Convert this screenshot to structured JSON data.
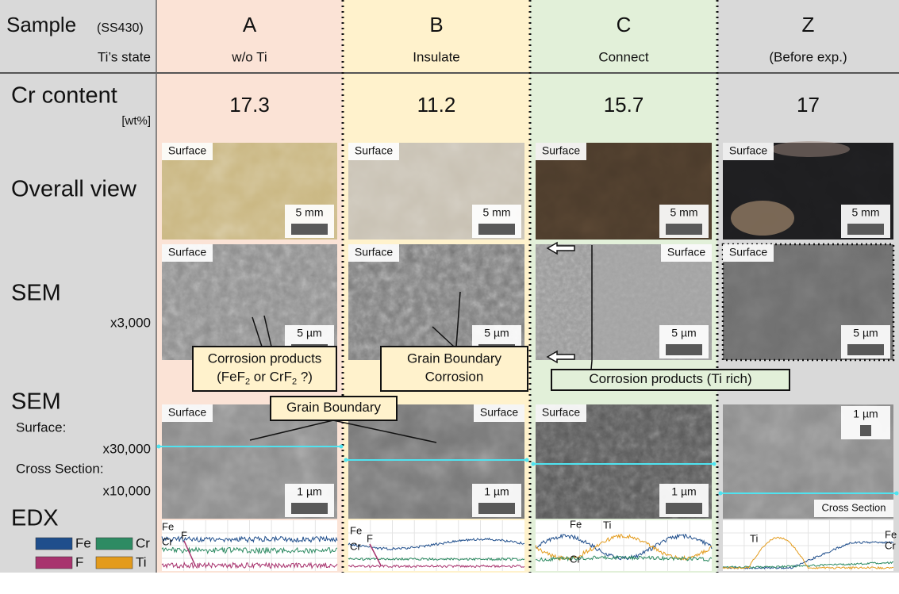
{
  "header": {
    "sample": "Sample",
    "sample_note": "(SS430)",
    "state_label": "Ti’s state"
  },
  "row_labels": {
    "cr_content": "Cr content",
    "cr_unit": "[wt%]",
    "overall": "Overall view",
    "sem1": "SEM",
    "sem1_mag": "x3,000",
    "sem2": "SEM",
    "surface": "Surface:",
    "surface_mag": "x30,000",
    "cross": "Cross Section:",
    "cross_mag": "x10,000",
    "edx": "EDX"
  },
  "legend": [
    {
      "name": "Fe",
      "color": "#1f4e8c"
    },
    {
      "name": "Cr",
      "color": "#2e8b63"
    },
    {
      "name": "F",
      "color": "#a8336e"
    },
    {
      "name": "Ti",
      "color": "#e39b1c"
    }
  ],
  "columns": [
    {
      "sample": "A",
      "state": "w/o Ti",
      "cr_content": 17.3,
      "overall": {
        "tag": "Surface",
        "scale": "5 mm"
      },
      "sem": {
        "tag": "Surface",
        "scale": "5 µm"
      },
      "sem_high": {
        "tag": "Surface",
        "scale": "1 µm"
      },
      "edx_labels": [
        "Fe",
        "Cr",
        "F"
      ]
    },
    {
      "sample": "B",
      "state": "Insulate",
      "cr_content": 11.2,
      "overall": {
        "tag": "Surface",
        "scale": "5 mm"
      },
      "sem": {
        "tag": "Surface",
        "scale": "5 µm"
      },
      "sem_high": {
        "tag": "Surface",
        "scale": "1 µm"
      },
      "edx_labels": [
        "Fe",
        "Cr",
        "F"
      ]
    },
    {
      "sample": "C",
      "state": "Connect",
      "cr_content": 15.7,
      "overall": {
        "tag": "Surface",
        "scale": "5 mm"
      },
      "sem": {
        "tag": "Surface",
        "scale": "5 µm"
      },
      "sem_high": {
        "tag": "Surface",
        "scale": "1 µm"
      },
      "edx_labels": [
        "Fe",
        "Ti",
        "Cr"
      ]
    },
    {
      "sample": "Z",
      "state": "(Before exp.)",
      "cr_content": 17,
      "overall": {
        "tag": "Surface",
        "scale": "5 mm"
      },
      "sem": {
        "tag": "Surface",
        "scale": "5 µm"
      },
      "sem_high": {
        "tag": "Cross Section",
        "scale": "1 µm"
      },
      "edx_labels": [
        "Fe",
        "Cr",
        "Ti"
      ]
    }
  ],
  "callouts": [
    {
      "lines": [
        [
          "Corrosion products"
        ],
        [
          "(FeF",
          "2",
          " or CrF",
          "2",
          " ?)"
        ]
      ]
    },
    {
      "lines": [
        [
          "Grain Boundary"
        ],
        [
          "Corrosion"
        ]
      ]
    },
    {
      "lines": [
        [
          "Corrosion products (Ti rich)"
        ]
      ]
    },
    {
      "lines": [
        [
          "Grain Boundary"
        ]
      ]
    }
  ]
}
